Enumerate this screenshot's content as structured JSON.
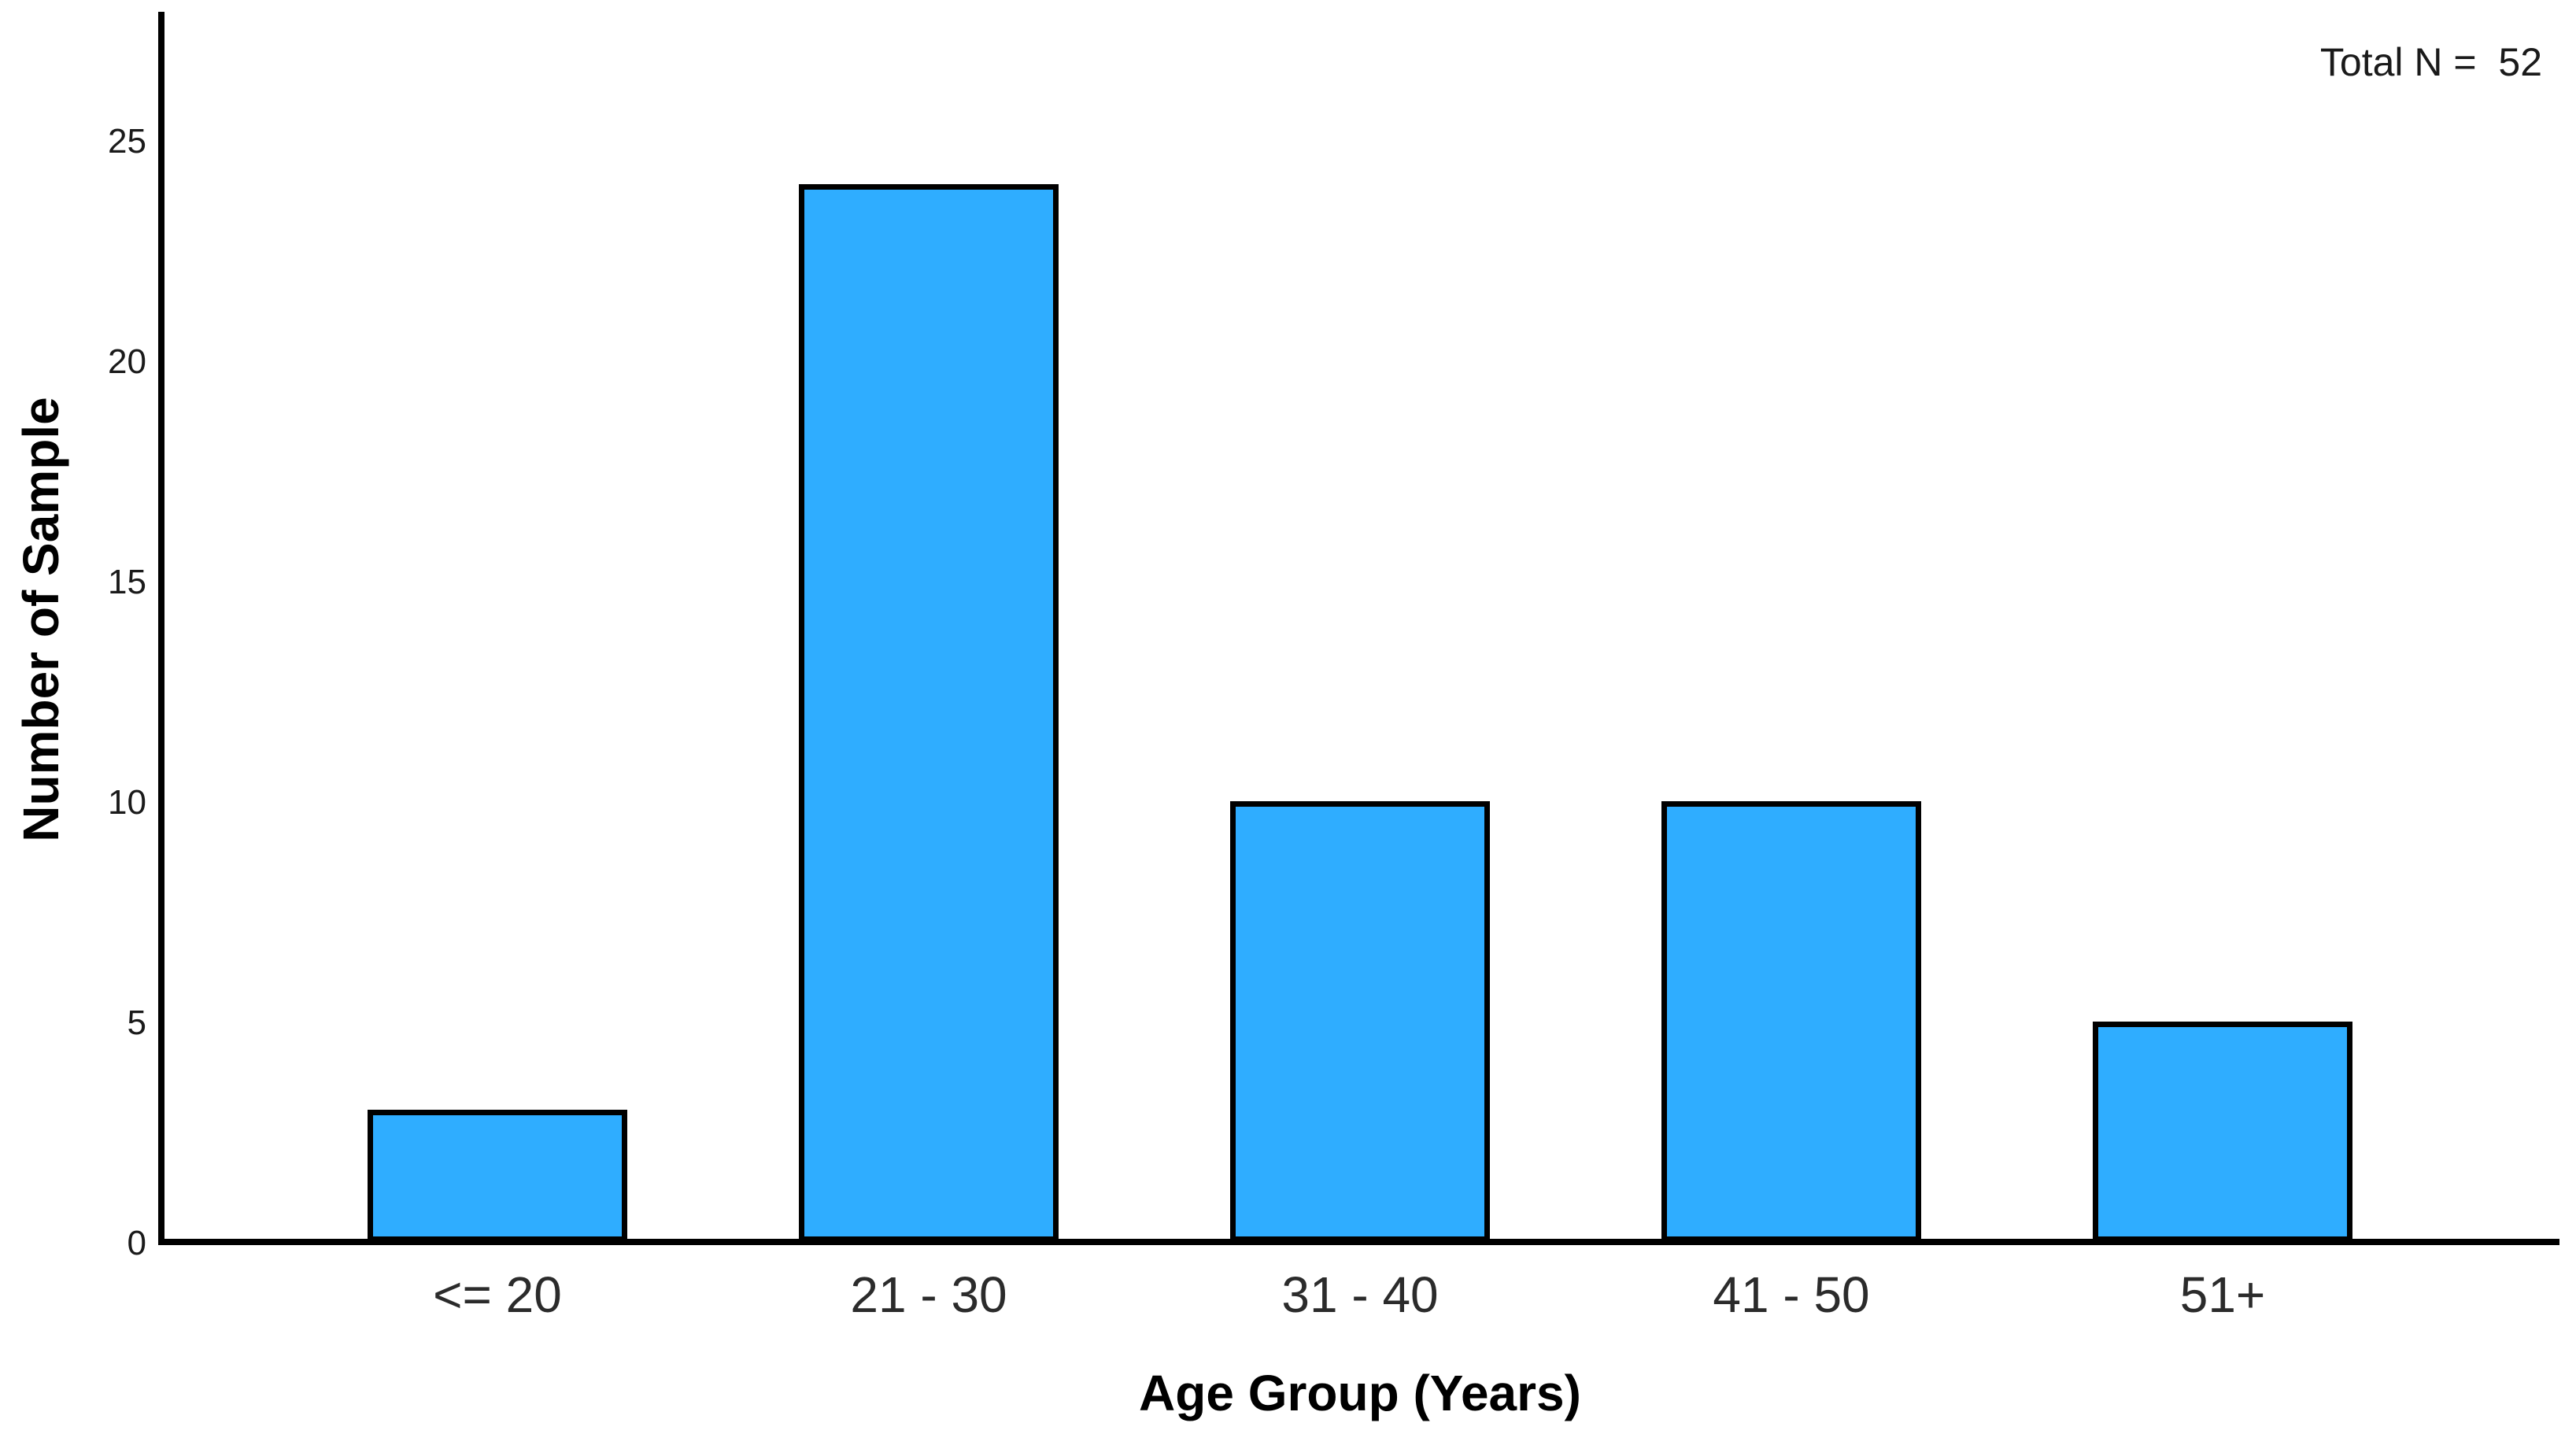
{
  "figure": {
    "background": "#ffffff"
  },
  "annotation": {
    "total_n_label": "Total N =  52"
  },
  "chart_data": {
    "type": "bar",
    "title": "",
    "categories": [
      "<= 20",
      "21 - 30",
      "31 - 40",
      "41 - 50",
      "51+"
    ],
    "values": [
      3,
      24,
      10,
      10,
      5
    ],
    "total_n": 52,
    "xlabel": "Age Group (Years)",
    "ylabel": "Number of Sample",
    "ylim": [
      0,
      25
    ],
    "yticks": [
      0,
      5,
      10,
      15,
      20,
      25
    ],
    "grid": false,
    "legend": "none",
    "bar_fill": "#2FADFF",
    "bar_border": "#000000",
    "axis_color": "#000000"
  }
}
